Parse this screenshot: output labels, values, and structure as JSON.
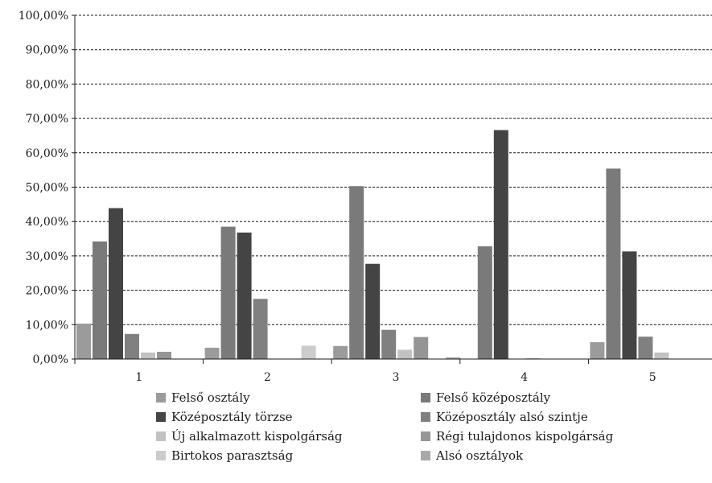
{
  "chart_data": {
    "type": "bar",
    "title": "",
    "xlabel": "",
    "ylabel": "",
    "categories": [
      "1",
      "2",
      "3",
      "4",
      "5"
    ],
    "ylim": [
      0,
      100
    ],
    "yticks": [
      "0,00%",
      "10,00%",
      "20,00%",
      "30,00%",
      "40,00%",
      "50,00%",
      "60,00%",
      "70,00%",
      "80,00%",
      "90,00%",
      "100,00%"
    ],
    "grid": true,
    "legend_position": "bottom",
    "series": [
      {
        "name": "Felső osztály",
        "color": "#9b9b9b",
        "values": [
          10.3,
          3.3,
          3.8,
          0,
          4.9
        ]
      },
      {
        "name": "Felső középosztály",
        "color": "#7a7a7a",
        "values": [
          34.2,
          38.5,
          50.3,
          32.8,
          55.4
        ]
      },
      {
        "name": "Középosztály törzse",
        "color": "#444444",
        "values": [
          43.9,
          36.8,
          27.7,
          66.6,
          31.3
        ]
      },
      {
        "name": "Középosztály alsó szintje",
        "color": "#808080",
        "values": [
          7.3,
          17.5,
          8.5,
          0,
          6.5
        ]
      },
      {
        "name": "Új alkalmazott kispolgárság",
        "color": "#c2c2c2",
        "values": [
          1.9,
          0,
          2.7,
          0.3,
          1.9
        ]
      },
      {
        "name": "Régi tulajdonos kispolgárság",
        "color": "#959595",
        "values": [
          2.1,
          0,
          6.4,
          0,
          0
        ]
      },
      {
        "name": "Birtokos parasztság",
        "color": "#cccccc",
        "values": [
          0,
          3.9,
          0,
          0,
          0
        ]
      },
      {
        "name": "Alsó osztályok",
        "color": "#a8a8a8",
        "values": [
          0,
          0,
          0.5,
          0,
          0
        ]
      }
    ]
  }
}
